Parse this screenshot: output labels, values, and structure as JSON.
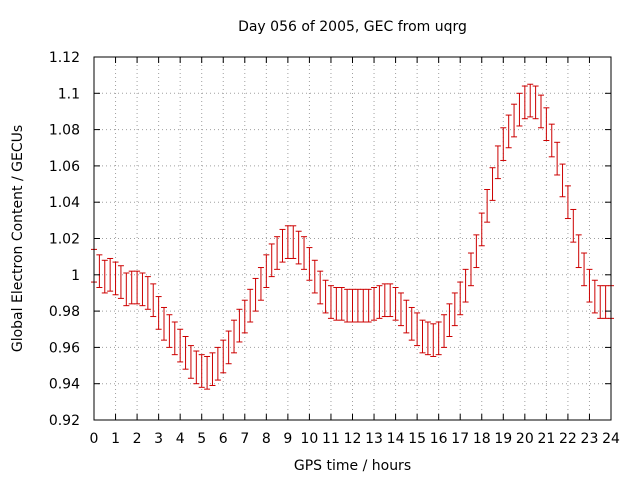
{
  "chart_data": {
    "type": "scatter",
    "title": "Day 056 of 2005, GEC from uqrg",
    "xlabel": "GPS time / hours",
    "ylabel": "Global Electron Content / GECUs",
    "xlim": [
      0,
      24
    ],
    "ylim": [
      0.92,
      1.12
    ],
    "xticks": [
      "0",
      "1",
      "2",
      "3",
      "4",
      "5",
      "6",
      "7",
      "8",
      "9",
      "10",
      "11",
      "12",
      "13",
      "14",
      "15",
      "16",
      "17",
      "18",
      "19",
      "20",
      "21",
      "22",
      "23",
      "24"
    ],
    "yticks": [
      "0.92",
      "0.94",
      "0.96",
      "0.98",
      "1",
      "1.02",
      "1.04",
      "1.06",
      "1.08",
      "1.1",
      "1.12"
    ],
    "grid": true,
    "legend": "none",
    "series": [
      {
        "color": "#cc0000",
        "error": 0.009,
        "x": [
          0,
          0.25,
          0.5,
          0.75,
          1,
          1.25,
          1.5,
          1.75,
          2,
          2.25,
          2.5,
          2.75,
          3,
          3.25,
          3.5,
          3.75,
          4,
          4.25,
          4.5,
          4.75,
          5,
          5.25,
          5.5,
          5.75,
          6,
          6.25,
          6.5,
          6.75,
          7,
          7.25,
          7.5,
          7.75,
          8,
          8.25,
          8.5,
          8.75,
          9,
          9.25,
          9.5,
          9.75,
          10,
          10.25,
          10.5,
          10.75,
          11,
          11.25,
          11.5,
          11.75,
          12,
          12.25,
          12.5,
          12.75,
          13,
          13.25,
          13.5,
          13.75,
          14,
          14.25,
          14.5,
          14.75,
          15,
          15.25,
          15.5,
          15.75,
          16,
          16.25,
          16.5,
          16.75,
          17,
          17.25,
          17.5,
          17.75,
          18,
          18.25,
          18.5,
          18.75,
          19,
          19.25,
          19.5,
          19.75,
          20,
          20.25,
          20.5,
          20.75,
          21,
          21.25,
          21.5,
          21.75,
          22,
          22.25,
          22.5,
          22.75,
          23,
          23.25,
          23.5,
          23.75,
          24
        ],
        "y": [
          1.005,
          1.002,
          0.999,
          1.0,
          0.998,
          0.996,
          0.992,
          0.993,
          0.993,
          0.992,
          0.99,
          0.986,
          0.979,
          0.973,
          0.969,
          0.965,
          0.961,
          0.957,
          0.952,
          0.949,
          0.947,
          0.946,
          0.948,
          0.951,
          0.955,
          0.96,
          0.966,
          0.972,
          0.977,
          0.983,
          0.989,
          0.995,
          1.002,
          1.008,
          1.012,
          1.016,
          1.018,
          1.018,
          1.015,
          1.012,
          1.006,
          0.999,
          0.993,
          0.988,
          0.985,
          0.984,
          0.984,
          0.983,
          0.983,
          0.983,
          0.983,
          0.983,
          0.984,
          0.985,
          0.986,
          0.986,
          0.984,
          0.981,
          0.977,
          0.973,
          0.97,
          0.966,
          0.965,
          0.964,
          0.965,
          0.969,
          0.975,
          0.981,
          0.987,
          0.994,
          1.003,
          1.013,
          1.025,
          1.038,
          1.05,
          1.062,
          1.072,
          1.079,
          1.085,
          1.091,
          1.095,
          1.096,
          1.095,
          1.09,
          1.083,
          1.074,
          1.064,
          1.052,
          1.04,
          1.027,
          1.013,
          1.003,
          0.994,
          0.988,
          0.985,
          0.985,
          0.985
        ]
      }
    ]
  }
}
